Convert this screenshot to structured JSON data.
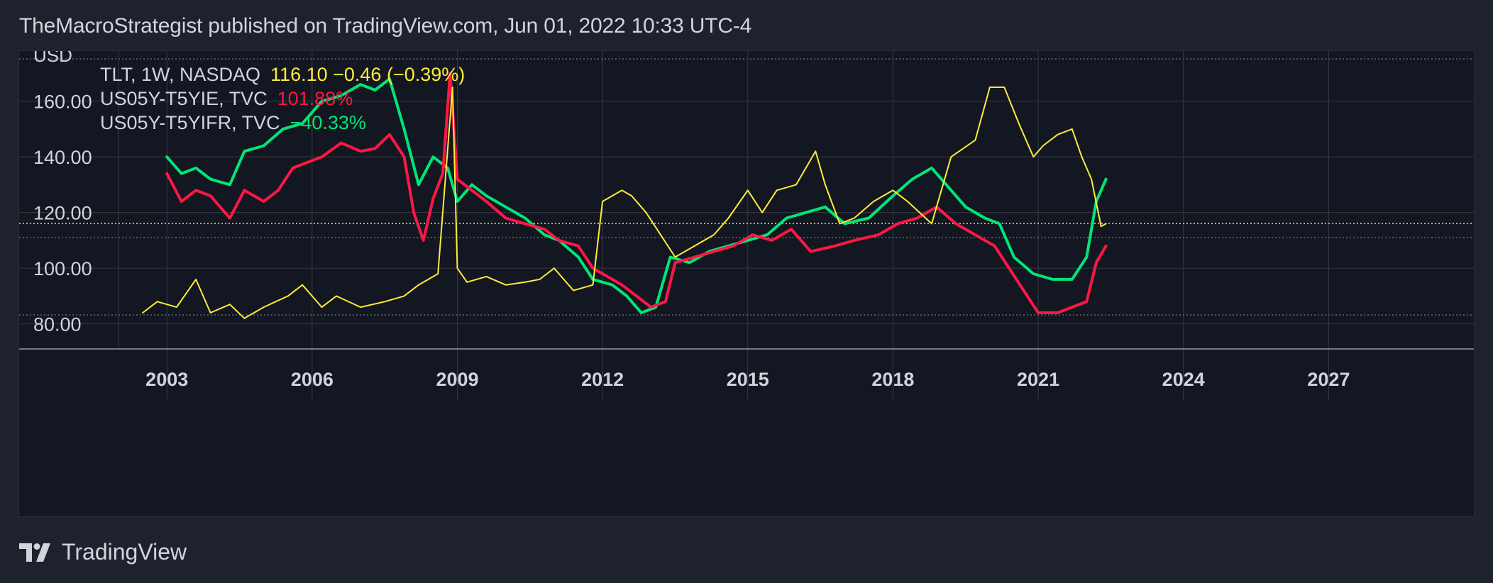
{
  "header": {
    "publish_line": "TheMacroStrategist published on TradingView.com, Jun 01, 2022 10:33 UTC-4"
  },
  "footer": {
    "brand": "TradingView",
    "logo_icon": "tradingview-logo-icon"
  },
  "colors": {
    "background": "#1e222d",
    "pane": "#131722",
    "grid": "#363a45",
    "tlt": "#ffeb3b",
    "us05y_t5yie": "#ff1744",
    "us05y_t5yifr": "#00e676",
    "axis_text": "#d1d4dc"
  },
  "legend": [
    {
      "name": "TLT, 1W, NASDAQ",
      "value": "116.10  −0.46 (−0.39%)",
      "color": "#ffeb3b"
    },
    {
      "name": "US05Y-T5YIE, TVC",
      "value": "101.88%",
      "color": "#ff1744"
    },
    {
      "name": "US05Y-T5YIFR, TVC",
      "value": "−40.33%",
      "color": "#00e676"
    }
  ],
  "chart_data": {
    "type": "line",
    "currency_label": "USD",
    "y_ticks": [
      "80.00",
      "100.00",
      "120.00",
      "140.00",
      "160.00"
    ],
    "x_ticks": [
      "2003",
      "2006",
      "2009",
      "2012",
      "2015",
      "2018",
      "2021",
      "2024",
      "2027"
    ],
    "xlim": [
      2002.0,
      2030.0
    ],
    "ylim": [
      71,
      178
    ],
    "price_line": 116.1,
    "dotted_level": 111,
    "grid": true,
    "legend_placement": "top-left",
    "series": [
      {
        "name": "TLT, 1W, NASDAQ",
        "key": "tlt",
        "x": [
          2002.5,
          2002.8,
          2003.2,
          2003.6,
          2003.9,
          2004.3,
          2004.6,
          2005.0,
          2005.5,
          2005.8,
          2006.2,
          2006.5,
          2007.0,
          2007.5,
          2007.9,
          2008.2,
          2008.6,
          2008.9,
          2009.0,
          2009.2,
          2009.6,
          2010.0,
          2010.4,
          2010.7,
          2011.0,
          2011.4,
          2011.8,
          2012.0,
          2012.4,
          2012.6,
          2012.9,
          2013.2,
          2013.5,
          2013.9,
          2014.3,
          2014.6,
          2015.0,
          2015.3,
          2015.6,
          2016.0,
          2016.4,
          2016.6,
          2016.9,
          2017.2,
          2017.6,
          2018.0,
          2018.3,
          2018.8,
          2019.2,
          2019.7,
          2020.0,
          2020.3,
          2020.6,
          2020.9,
          2021.1,
          2021.4,
          2021.7,
          2021.9,
          2022.1,
          2022.3,
          2022.4
        ],
        "y": [
          84,
          88,
          86,
          96,
          84,
          87,
          82,
          86,
          90,
          94,
          86,
          90,
          86,
          88,
          90,
          94,
          98,
          165,
          100,
          95,
          97,
          94,
          95,
          96,
          100,
          92,
          94,
          124,
          128,
          126,
          120,
          112,
          104,
          108,
          112,
          118,
          128,
          120,
          128,
          130,
          142,
          130,
          116,
          118,
          124,
          128,
          124,
          116,
          140,
          146,
          165,
          165,
          152,
          140,
          144,
          148,
          150,
          140,
          132,
          115,
          116
        ]
      },
      {
        "name": "US05Y-T5YIE, TVC",
        "key": "us05y_t5yie",
        "x": [
          2003.0,
          2003.3,
          2003.6,
          2003.9,
          2004.3,
          2004.6,
          2005.0,
          2005.3,
          2005.6,
          2005.9,
          2006.2,
          2006.6,
          2007.0,
          2007.3,
          2007.6,
          2007.9,
          2008.1,
          2008.3,
          2008.5,
          2008.7,
          2008.85,
          2009.0,
          2009.3,
          2009.6,
          2010.0,
          2010.4,
          2010.8,
          2011.1,
          2011.5,
          2011.8,
          2012.1,
          2012.4,
          2012.7,
          2013.0,
          2013.3,
          2013.5,
          2013.9,
          2014.3,
          2014.7,
          2015.1,
          2015.5,
          2015.9,
          2016.3,
          2016.8,
          2017.2,
          2017.7,
          2018.1,
          2018.5,
          2018.9,
          2019.3,
          2019.7,
          2020.1,
          2020.4,
          2020.7,
          2021.0,
          2021.4,
          2021.7,
          2022.0,
          2022.2,
          2022.4
        ],
        "y": [
          134,
          124,
          128,
          126,
          118,
          128,
          124,
          128,
          136,
          138,
          140,
          145,
          142,
          143,
          148,
          140,
          120,
          110,
          125,
          134,
          170,
          132,
          128,
          124,
          118,
          116,
          114,
          110,
          108,
          100,
          97,
          94,
          90,
          86,
          88,
          102,
          104,
          106,
          108,
          112,
          110,
          114,
          106,
          108,
          110,
          112,
          116,
          118,
          122,
          116,
          112,
          108,
          100,
          92,
          84,
          84,
          86,
          88,
          102,
          108
        ]
      },
      {
        "name": "US05Y-T5YIFR, TVC",
        "key": "us05y_t5yifr",
        "x": [
          2003.0,
          2003.3,
          2003.6,
          2003.9,
          2004.3,
          2004.6,
          2005.0,
          2005.4,
          2005.8,
          2006.2,
          2006.6,
          2007.0,
          2007.3,
          2007.6,
          2007.9,
          2008.2,
          2008.5,
          2008.8,
          2009.0,
          2009.3,
          2009.6,
          2010.0,
          2010.4,
          2010.8,
          2011.1,
          2011.5,
          2011.8,
          2012.2,
          2012.5,
          2012.8,
          2013.1,
          2013.4,
          2013.8,
          2014.2,
          2014.6,
          2015.0,
          2015.4,
          2015.8,
          2016.2,
          2016.6,
          2017.0,
          2017.5,
          2018.0,
          2018.4,
          2018.8,
          2019.1,
          2019.5,
          2019.9,
          2020.2,
          2020.5,
          2020.9,
          2021.3,
          2021.7,
          2022.0,
          2022.2,
          2022.4
        ],
        "y": [
          140,
          134,
          136,
          132,
          130,
          142,
          144,
          150,
          152,
          160,
          162,
          166,
          164,
          168,
          150,
          130,
          140,
          136,
          124,
          130,
          126,
          122,
          118,
          112,
          110,
          104,
          96,
          94,
          90,
          84,
          86,
          104,
          102,
          106,
          108,
          110,
          112,
          118,
          120,
          122,
          116,
          118,
          126,
          132,
          136,
          130,
          122,
          118,
          116,
          104,
          98,
          96,
          96,
          104,
          124,
          132
        ]
      }
    ]
  }
}
